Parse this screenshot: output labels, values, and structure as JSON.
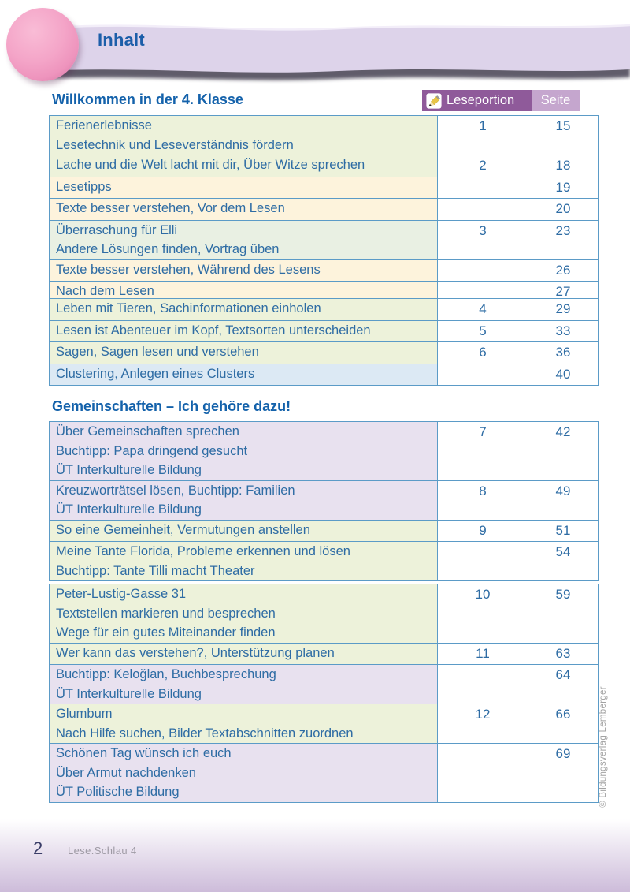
{
  "header": {
    "title": "Inhalt"
  },
  "columns": {
    "leseportion": "Leseportion",
    "seite": "Seite",
    "icon": "pencil-icon"
  },
  "colors": {
    "green": "#edf2da",
    "green2": "#e9f0e3",
    "cream": "#fdf3dc",
    "blue": "#dce9f4",
    "lavender": "#e8e1ef",
    "header_purple": "#8f5a9a",
    "header_light_purple": "#c5a6ce",
    "border_blue": "#5b9bc7",
    "text_blue": "#2e6ca4",
    "title_blue": "#1462ab"
  },
  "sections": [
    {
      "title": "Willkommen in der 4. Klasse",
      "groups": [
        {
          "rows": [
            {
              "lines": [
                "Ferienerlebnisse",
                "Lesetechnik und Leseverständnis fördern"
              ],
              "leseportion": "1",
              "seite": "15",
              "bg": "green"
            },
            {
              "lines": [
                "Lache und die Welt lacht mit dir, Über Witze sprechen"
              ],
              "leseportion": "2",
              "seite": "18",
              "bg": "green"
            },
            {
              "lines": [
                "Lesetipps"
              ],
              "leseportion": "",
              "seite": "19",
              "bg": "cream"
            },
            {
              "lines": [
                "Texte besser verstehen, Vor dem Lesen"
              ],
              "leseportion": "",
              "seite": "20",
              "bg": "cream"
            },
            {
              "lines": [
                "Überraschung für Elli",
                "Andere Lösungen finden, Vortrag üben"
              ],
              "leseportion": "3",
              "seite": "23",
              "bg": "green2"
            },
            {
              "lines": [
                "Texte besser verstehen, Während des Lesens"
              ],
              "leseportion": "",
              "seite": "26",
              "bg": "cream"
            },
            {
              "lines": [
                "Nach dem Lesen"
              ],
              "leseportion": "",
              "seite": "27",
              "bg": "cream"
            }
          ]
        },
        {
          "rows": [
            {
              "lines": [
                "Leben mit Tieren, Sachinformationen einholen"
              ],
              "leseportion": "4",
              "seite": "29",
              "bg": "green"
            },
            {
              "lines": [
                "Lesen ist Abenteuer im Kopf, Textsorten unterscheiden"
              ],
              "leseportion": "5",
              "seite": "33",
              "bg": "green"
            },
            {
              "lines": [
                "Sagen, Sagen lesen und verstehen"
              ],
              "leseportion": "6",
              "seite": "36",
              "bg": "green"
            },
            {
              "lines": [
                "Clustering, Anlegen eines Clusters"
              ],
              "leseportion": "",
              "seite": "40",
              "bg": "blue"
            }
          ]
        }
      ]
    },
    {
      "title": "Gemeinschaften – Ich gehöre dazu!",
      "groups": [
        {
          "rows": [
            {
              "lines": [
                "Über Gemeinschaften sprechen",
                "Buchtipp: Papa dringend gesucht",
                "ÜT Interkulturelle Bildung"
              ],
              "leseportion": "7",
              "seite": "42",
              "bg": "lavender"
            },
            {
              "lines": [
                "Kreuzworträtsel lösen, Buchtipp: Familien",
                "ÜT Interkulturelle Bildung"
              ],
              "leseportion": "8",
              "seite": "49",
              "bg": "lavender"
            },
            {
              "lines": [
                "So eine Gemeinheit, Vermutungen anstellen"
              ],
              "leseportion": "9",
              "seite": "51",
              "bg": "green"
            },
            {
              "lines": [
                "Meine Tante Florida, Probleme erkennen und lösen",
                "Buchtipp: Tante Tilli macht Theater"
              ],
              "leseportion": "",
              "seite": "54",
              "bg": "green"
            }
          ]
        },
        {
          "rows": [
            {
              "lines": [
                "Peter-Lustig-Gasse 31",
                "Textstellen markieren und besprechen",
                "Wege für ein gutes Miteinander finden"
              ],
              "leseportion": "10",
              "seite": "59",
              "bg": "green"
            },
            {
              "lines": [
                "Wer kann das verstehen?, Unterstützung planen"
              ],
              "leseportion": "11",
              "seite": "63",
              "bg": "green"
            },
            {
              "lines": [
                "Buchtipp: Keloğlan, Buchbesprechung",
                "ÜT Interkulturelle Bildung"
              ],
              "leseportion": "",
              "seite": "64",
              "bg": "lavender"
            },
            {
              "lines": [
                "Glumbum",
                "Nach Hilfe suchen, Bilder Textabschnitten zuordnen"
              ],
              "leseportion": "12",
              "seite": "66",
              "bg": "green"
            },
            {
              "lines": [
                "Schönen Tag wünsch ich euch",
                "Über Armut nachdenken",
                "ÜT Politische Bildung"
              ],
              "leseportion": "",
              "seite": "69",
              "bg": "lavender"
            }
          ]
        }
      ]
    }
  ],
  "footer": {
    "page_number": "2",
    "brand": "Lese.Schlau 4",
    "copyright": "© Bildungsverlag Lemberger"
  }
}
